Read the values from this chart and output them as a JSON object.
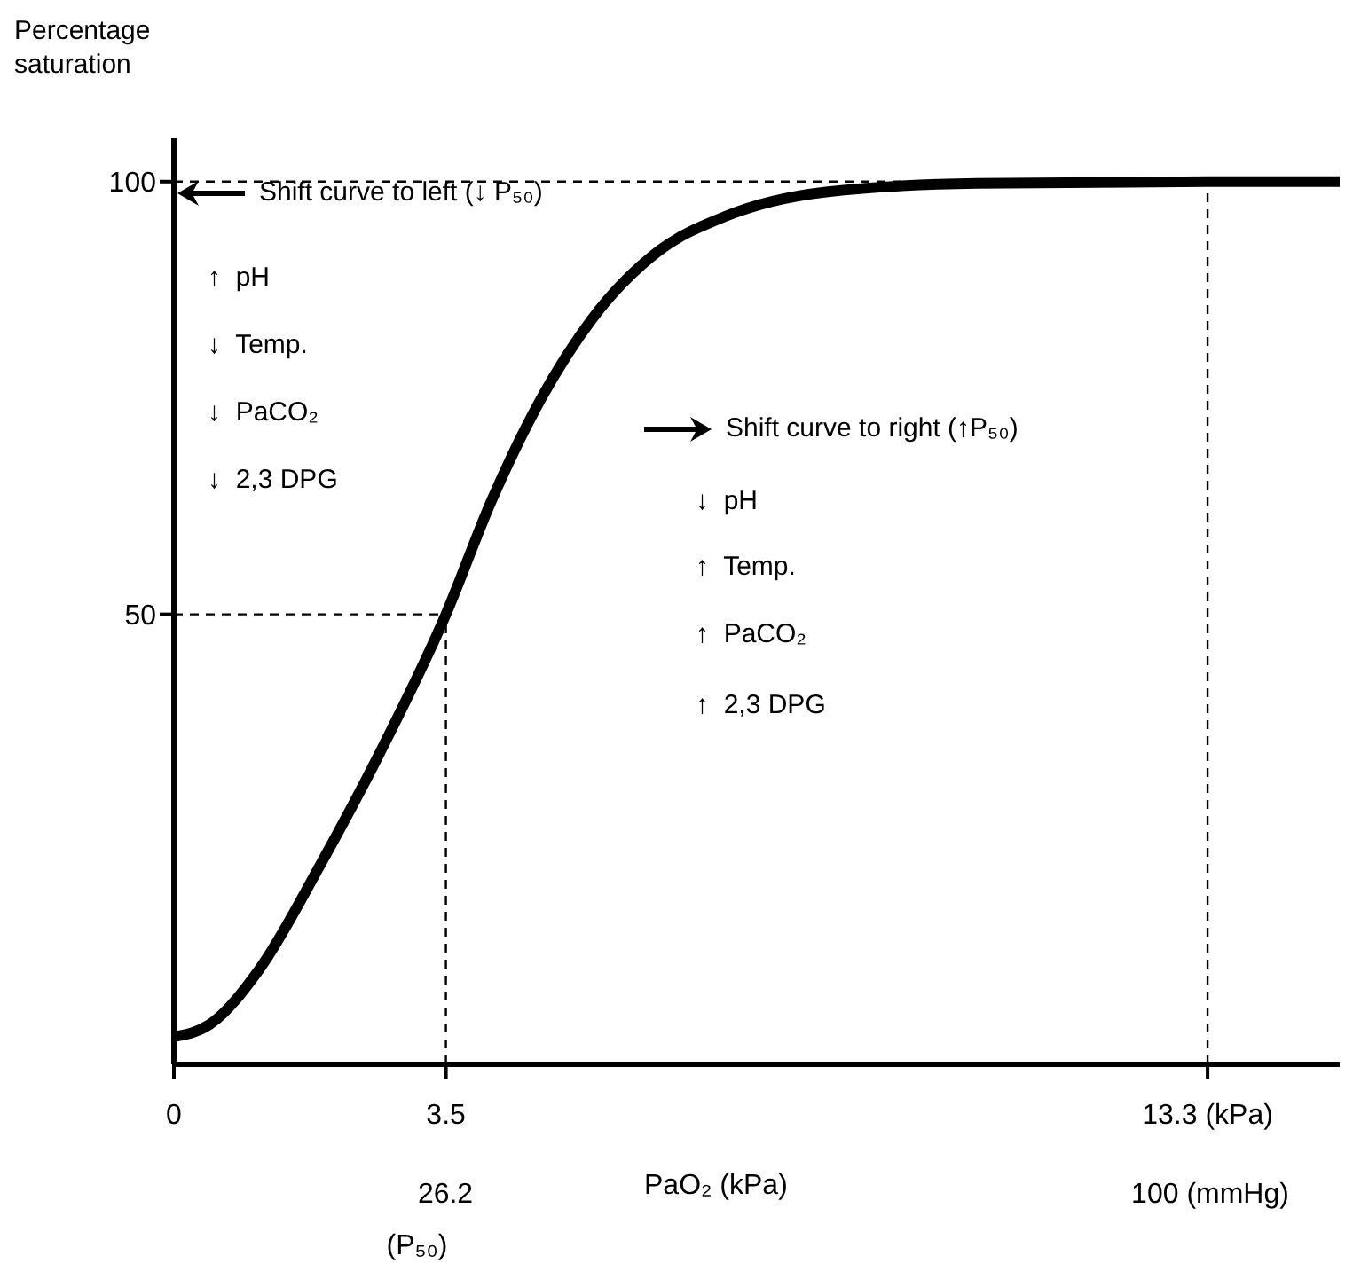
{
  "chart_data": {
    "type": "line",
    "ylabel": "Percentage saturation",
    "xlabel": "PaO₂ (kPa)",
    "xlim": [
      0,
      15
    ],
    "ylim": [
      -2,
      105
    ],
    "xticks": [
      0,
      3.5,
      {
        "value": 13.3,
        "label": "13.3 (kPa)"
      }
    ],
    "x2lim": [
      0,
      112.5
    ],
    "x2ticks": [
      26.2,
      {
        "value": 100,
        "label": "100 (mmHg)"
      }
    ],
    "yticks": [
      50,
      100
    ],
    "series": [
      {
        "color": "#000000",
        "x": [
          0,
          0.46,
          1.1,
          1.88,
          2.65,
          3.5,
          4.08,
          4.73,
          5.37,
          6.24,
          7.1,
          8.39,
          10.33,
          13.3,
          15
        ],
        "values": [
          1.2,
          2.6,
          9,
          21,
          34,
          50,
          63,
          75,
          84,
          92,
          96,
          98.8,
          99.8,
          100,
          100
        ]
      }
    ],
    "ref_lines": [
      {
        "axis": "y",
        "value": 100,
        "line_style": "dashed"
      },
      {
        "axis": "y",
        "value": 50,
        "line_style": "dashed"
      },
      {
        "axis": "x",
        "value": 3.5,
        "line_style": "dashed"
      },
      {
        "axis": "x",
        "value": 13.3,
        "line_style": "dashed"
      }
    ],
    "annotations": [
      "Shift curve to left (↓ P₅₀)",
      "↑  pH",
      "↓  Temp.",
      "↓  PaCO₂",
      "↓  2,3 DPG",
      "Shift curve to right (↑P₅₀)",
      "↓  pH",
      "↑  Temp.",
      "↑  PaCO₂",
      "↑  2,3 DPG",
      "(P₅₀)"
    ],
    "grid": false,
    "legend": false,
    "marker": "none",
    "line_style": "solid"
  }
}
